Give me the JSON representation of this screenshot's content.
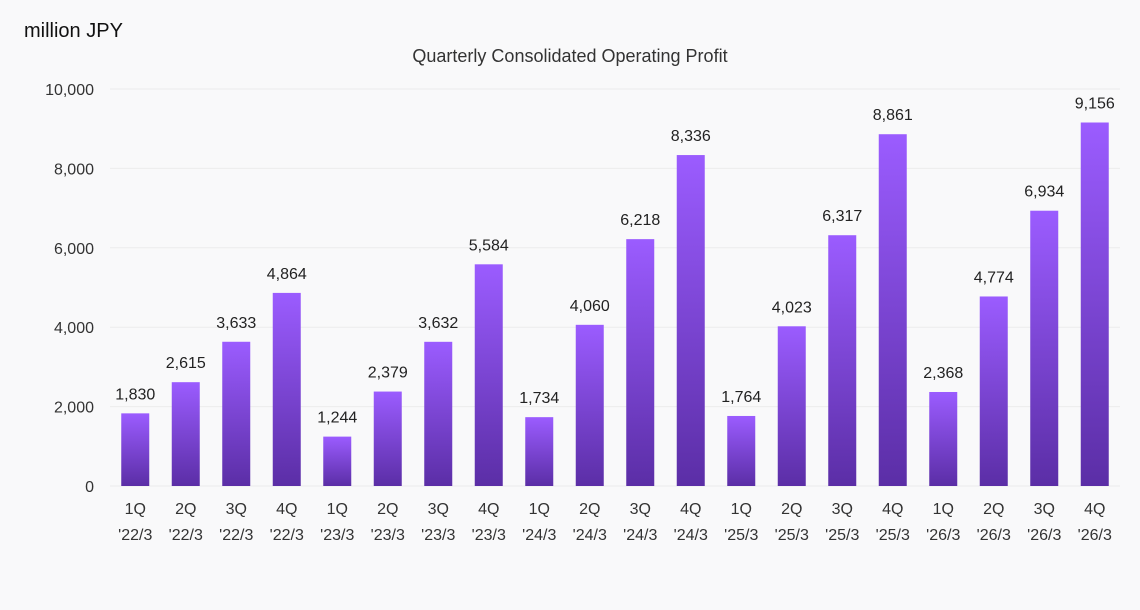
{
  "unit_label": "million JPY",
  "chart_data": {
    "type": "bar",
    "title": "Quarterly Consolidated Operating Profit",
    "ylabel": "million JPY",
    "xlabel": "",
    "ylim": [
      0,
      10000
    ],
    "y_ticks": [
      "0",
      "2,000",
      "4,000",
      "6,000",
      "8,000",
      "10,000"
    ],
    "y_tick_values": [
      0,
      2000,
      4000,
      6000,
      8000,
      10000
    ],
    "grid": true,
    "categories": [
      [
        "1Q",
        "'22/3"
      ],
      [
        "2Q",
        "'22/3"
      ],
      [
        "3Q",
        "'22/3"
      ],
      [
        "4Q",
        "'22/3"
      ],
      [
        "1Q",
        "'23/3"
      ],
      [
        "2Q",
        "'23/3"
      ],
      [
        "3Q",
        "'23/3"
      ],
      [
        "4Q",
        "'23/3"
      ],
      [
        "1Q",
        "'24/3"
      ],
      [
        "2Q",
        "'24/3"
      ],
      [
        "3Q",
        "'24/3"
      ],
      [
        "4Q",
        "'24/3"
      ],
      [
        "1Q",
        "'25/3"
      ],
      [
        "2Q",
        "'25/3"
      ],
      [
        "3Q",
        "'25/3"
      ],
      [
        "4Q",
        "'25/3"
      ],
      [
        "1Q",
        "'26/3"
      ],
      [
        "2Q",
        "'26/3"
      ],
      [
        "3Q",
        "'26/3"
      ],
      [
        "4Q",
        "'26/3"
      ]
    ],
    "values": [
      1830,
      2615,
      3633,
      4864,
      1244,
      2379,
      3632,
      5584,
      1734,
      4060,
      6218,
      8336,
      1764,
      4023,
      6317,
      8861,
      2368,
      4774,
      6934,
      9156
    ],
    "value_labels": [
      "1,830",
      "2,615",
      "3,633",
      "4,864",
      "1,244",
      "2,379",
      "3,632",
      "5,584",
      "1,734",
      "4,060",
      "6,218",
      "8,336",
      "1,764",
      "4,023",
      "6,317",
      "8,861",
      "2,368",
      "4,774",
      "6,934",
      "9,156"
    ],
    "colors": {
      "bar_top": "#9b5cff",
      "bar_bottom": "#5b2ea6"
    }
  }
}
